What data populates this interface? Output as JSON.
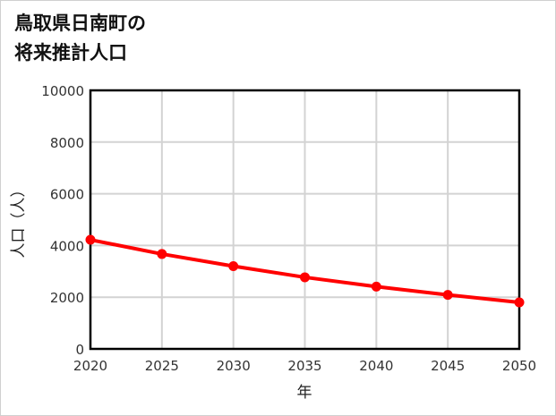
{
  "title": {
    "line1": "鳥取県日南町の",
    "line2": "将来推計人口"
  },
  "chart_data": {
    "type": "line",
    "title": "鳥取県日南町の将来推計人口",
    "xlabel": "年",
    "ylabel": "人口（人）",
    "x": [
      2020,
      2025,
      2030,
      2035,
      2040,
      2045,
      2050
    ],
    "categories": [
      "2020",
      "2025",
      "2030",
      "2035",
      "2040",
      "2045",
      "2050"
    ],
    "series": [
      {
        "name": "人口",
        "values": [
          4220,
          3670,
          3200,
          2770,
          2410,
          2090,
          1800
        ],
        "color": "#ff0000"
      }
    ],
    "ylim": [
      0,
      10000
    ],
    "xlim": [
      2020,
      2050
    ],
    "yticks": [
      "0",
      "2000",
      "4000",
      "6000",
      "8000",
      "10000"
    ],
    "xticks": [
      "2020",
      "2025",
      "2030",
      "2035",
      "2040",
      "2045",
      "2050"
    ],
    "grid": true,
    "legend": "none"
  },
  "colors": {
    "line": "#ff0000",
    "grid": "#d3d3d3",
    "axis": "#000000"
  }
}
